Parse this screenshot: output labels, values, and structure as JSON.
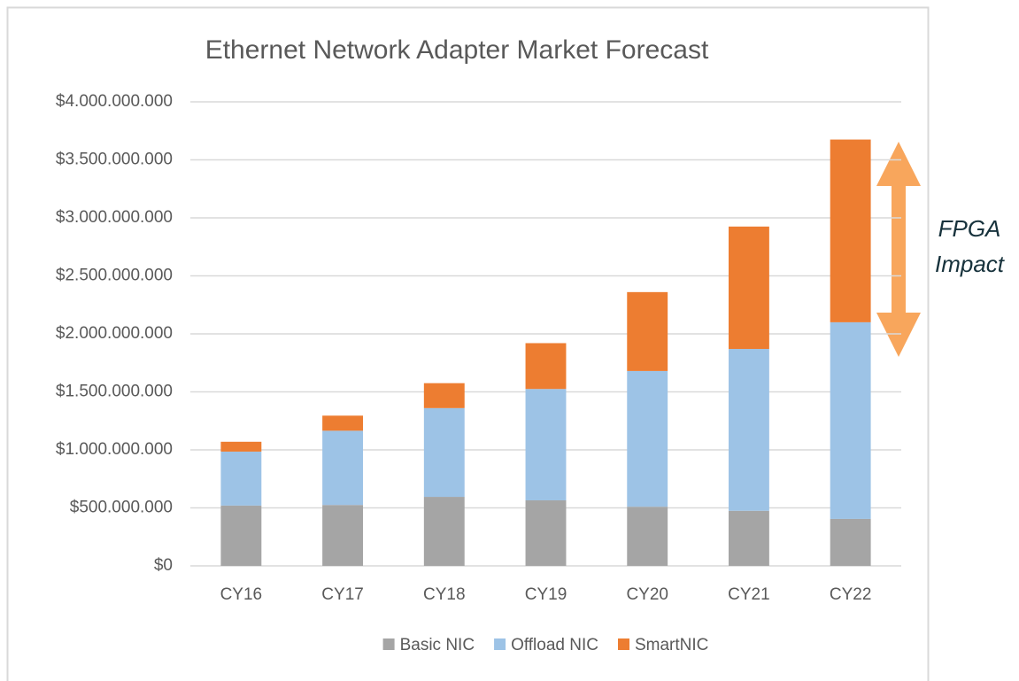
{
  "chart_data": {
    "type": "bar",
    "stacked": true,
    "title": "Ethernet Network Adapter Market Forecast",
    "categories": [
      "CY16",
      "CY17",
      "CY18",
      "CY19",
      "CY20",
      "CY21",
      "CY22"
    ],
    "series": [
      {
        "name": "Basic NIC",
        "color": "#a5a5a5",
        "values": [
          520000000,
          525000000,
          595000000,
          565000000,
          510000000,
          475000000,
          405000000
        ]
      },
      {
        "name": "Offload NIC",
        "color": "#9dc3e6",
        "values": [
          465000000,
          640000000,
          765000000,
          960000000,
          1170000000,
          1395000000,
          1695000000
        ]
      },
      {
        "name": "SmartNIC",
        "color": "#ed7d31",
        "values": [
          85000000,
          130000000,
          215000000,
          395000000,
          680000000,
          1055000000,
          1575000000
        ]
      }
    ],
    "ylim": [
      0,
      4000000000
    ],
    "yticks": [
      {
        "value": 0,
        "label": "$0"
      },
      {
        "value": 500000000,
        "label": "$500.000.000"
      },
      {
        "value": 1000000000,
        "label": "$1.000.000.000"
      },
      {
        "value": 1500000000,
        "label": "$1.500.000.000"
      },
      {
        "value": 2000000000,
        "label": "$2.000.000.000"
      },
      {
        "value": 2500000000,
        "label": "$2.500.000.000"
      },
      {
        "value": 3000000000,
        "label": "$3.000.000.000"
      },
      {
        "value": 3500000000,
        "label": "$3.500.000.000"
      },
      {
        "value": 4000000000,
        "label": "$4.000.000.000"
      }
    ],
    "grid": true,
    "legend": "bottom",
    "annotation": "FPGA Impact"
  }
}
